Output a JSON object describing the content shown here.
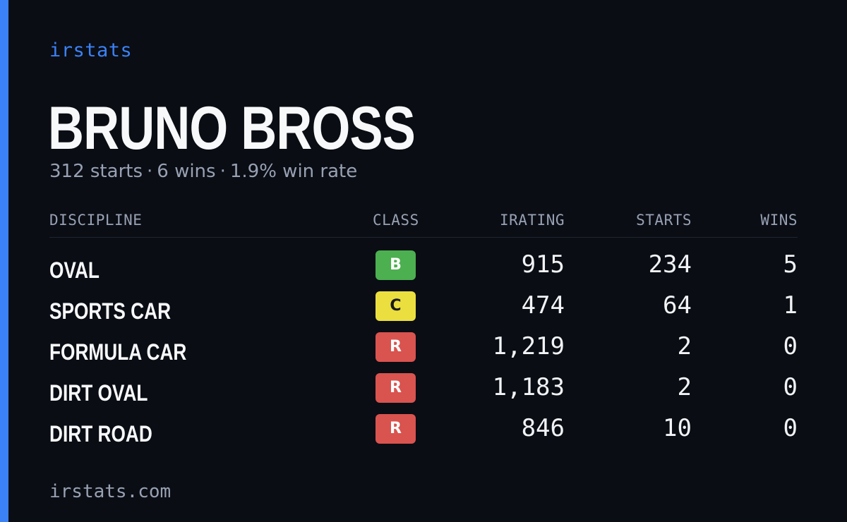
{
  "brand": "irstats",
  "driver": {
    "name": "BRUNO BROSS",
    "summary": {
      "starts": "312 starts",
      "wins": "6 wins",
      "win_rate": "1.9% win rate",
      "separator": "·"
    }
  },
  "table": {
    "headers": {
      "discipline": "DISCIPLINE",
      "class": "CLASS",
      "irating": "IRATING",
      "starts": "STARTS",
      "wins": "WINS"
    },
    "rows": [
      {
        "discipline": "OVAL",
        "class": "B",
        "irating": "915",
        "starts": "234",
        "wins": "5"
      },
      {
        "discipline": "SPORTS CAR",
        "class": "C",
        "irating": "474",
        "starts": "64",
        "wins": "1"
      },
      {
        "discipline": "FORMULA CAR",
        "class": "R",
        "irating": "1,219",
        "starts": "2",
        "wins": "0"
      },
      {
        "discipline": "DIRT OVAL",
        "class": "R",
        "irating": "1,183",
        "starts": "2",
        "wins": "0"
      },
      {
        "discipline": "DIRT ROAD",
        "class": "R",
        "irating": "846",
        "starts": "10",
        "wins": "0"
      }
    ]
  },
  "footer": {
    "url": "irstats.com"
  },
  "colors": {
    "accent": "#3b82f6",
    "background": "#0a0d14",
    "class_b": "#4caf50",
    "class_c": "#ebdf3f",
    "class_r": "#d9534f"
  }
}
